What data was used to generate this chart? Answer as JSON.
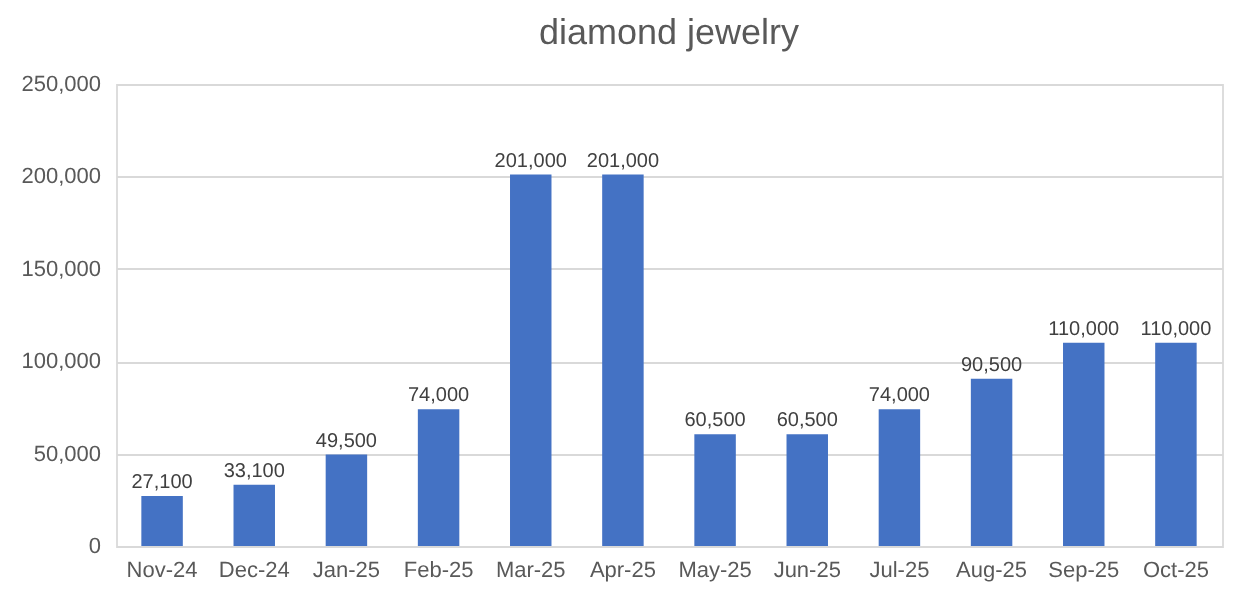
{
  "chart_data": {
    "type": "bar",
    "title": "diamond jewelry",
    "categories": [
      "Nov-24",
      "Dec-24",
      "Jan-25",
      "Feb-25",
      "Mar-25",
      "Apr-25",
      "May-25",
      "Jun-25",
      "Jul-25",
      "Aug-25",
      "Sep-25",
      "Oct-25"
    ],
    "values": [
      27100,
      33100,
      49500,
      74000,
      201000,
      201000,
      60500,
      60500,
      74000,
      90500,
      110000,
      110000
    ],
    "color": "#4472c4",
    "ylim": [
      0,
      250000
    ],
    "yticks": [
      0,
      {
        "value": 50000,
        "label": "50,000"
      },
      {
        "value": 100000,
        "label": "100,000"
      },
      {
        "value": 150000,
        "label": "150,000"
      },
      {
        "value": 200000,
        "label": "200,000"
      },
      {
        "value": 250000,
        "label": "250,000"
      }
    ],
    "value_labels": [
      "27,100",
      "33,100",
      "49,500",
      "74,000",
      "201,000",
      "201,000",
      "60,500",
      "60,500",
      "74,000",
      "90,500",
      "110,000",
      "110,000"
    ],
    "grid": "y"
  }
}
